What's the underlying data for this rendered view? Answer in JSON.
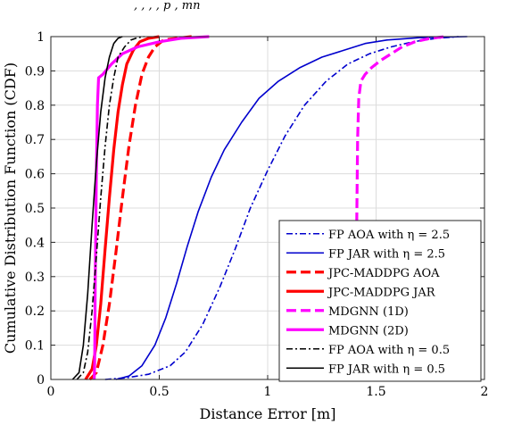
{
  "top_strip_text": ",        ,        ,        ,   p        ,       mn",
  "chart_data": {
    "type": "line",
    "title": "",
    "xlabel": "Distance Error [m]",
    "ylabel": "Cumulative Distribution Function (CDF)",
    "xlim": [
      0,
      2
    ],
    "ylim": [
      0,
      1
    ],
    "xticks": [
      "0",
      "0.5",
      "1",
      "1.5",
      "2"
    ],
    "yticks": [
      "0",
      "0.1",
      "0.2",
      "0.3",
      "0.4",
      "0.5",
      "0.6",
      "0.7",
      "0.8",
      "0.9",
      "1"
    ],
    "grid": true,
    "legend_position": "bottom-right",
    "series": [
      {
        "name": "FP AOA with η = 2.5",
        "color": "#0000cd",
        "dash": "dashdot",
        "width": 1.6,
        "points": [
          [
            0.25,
            0
          ],
          [
            0.35,
            0.005
          ],
          [
            0.45,
            0.015
          ],
          [
            0.55,
            0.04
          ],
          [
            0.62,
            0.08
          ],
          [
            0.7,
            0.16
          ],
          [
            0.78,
            0.27
          ],
          [
            0.85,
            0.38
          ],
          [
            0.92,
            0.5
          ],
          [
            1.0,
            0.61
          ],
          [
            1.08,
            0.71
          ],
          [
            1.17,
            0.8
          ],
          [
            1.27,
            0.87
          ],
          [
            1.37,
            0.92
          ],
          [
            1.47,
            0.95
          ],
          [
            1.57,
            0.97
          ],
          [
            1.67,
            0.985
          ],
          [
            1.78,
            0.995
          ],
          [
            1.88,
            1
          ]
        ]
      },
      {
        "name": "FP JAR with η = 2.5",
        "color": "#0000cd",
        "dash": "solid",
        "width": 1.6,
        "points": [
          [
            0.3,
            0
          ],
          [
            0.36,
            0.01
          ],
          [
            0.42,
            0.04
          ],
          [
            0.48,
            0.1
          ],
          [
            0.53,
            0.18
          ],
          [
            0.58,
            0.28
          ],
          [
            0.63,
            0.39
          ],
          [
            0.68,
            0.49
          ],
          [
            0.74,
            0.59
          ],
          [
            0.8,
            0.67
          ],
          [
            0.88,
            0.75
          ],
          [
            0.96,
            0.82
          ],
          [
            1.05,
            0.87
          ],
          [
            1.15,
            0.91
          ],
          [
            1.25,
            0.94
          ],
          [
            1.35,
            0.96
          ],
          [
            1.45,
            0.98
          ],
          [
            1.55,
            0.99
          ],
          [
            1.7,
            0.997
          ],
          [
            1.92,
            1
          ]
        ]
      },
      {
        "name": "JPC-MADDPG AOA",
        "color": "#ff0000",
        "dash": "longdash",
        "width": 3.2,
        "points": [
          [
            0.18,
            0
          ],
          [
            0.21,
            0.02
          ],
          [
            0.24,
            0.1
          ],
          [
            0.27,
            0.22
          ],
          [
            0.3,
            0.37
          ],
          [
            0.33,
            0.53
          ],
          [
            0.36,
            0.68
          ],
          [
            0.39,
            0.8
          ],
          [
            0.42,
            0.89
          ],
          [
            0.45,
            0.94
          ],
          [
            0.48,
            0.97
          ],
          [
            0.52,
            0.99
          ],
          [
            0.58,
            0.995
          ],
          [
            0.65,
            1
          ]
        ]
      },
      {
        "name": "JPC-MADDPG JAR",
        "color": "#ff0000",
        "dash": "solid",
        "width": 3.2,
        "points": [
          [
            0.16,
            0
          ],
          [
            0.19,
            0.03
          ],
          [
            0.21,
            0.1
          ],
          [
            0.23,
            0.22
          ],
          [
            0.25,
            0.38
          ],
          [
            0.27,
            0.53
          ],
          [
            0.29,
            0.67
          ],
          [
            0.31,
            0.78
          ],
          [
            0.33,
            0.86
          ],
          [
            0.35,
            0.92
          ],
          [
            0.38,
            0.96
          ],
          [
            0.41,
            0.985
          ],
          [
            0.45,
            0.995
          ],
          [
            0.5,
            1
          ]
        ]
      },
      {
        "name": "MDGNN (1D)",
        "color": "#ff00ff",
        "dash": "longdash",
        "width": 3.2,
        "points": [
          [
            1.4,
            0
          ],
          [
            1.405,
            0.1
          ],
          [
            1.41,
            0.4
          ],
          [
            1.415,
            0.7
          ],
          [
            1.42,
            0.82
          ],
          [
            1.43,
            0.87
          ],
          [
            1.45,
            0.89
          ],
          [
            1.48,
            0.91
          ],
          [
            1.52,
            0.93
          ],
          [
            1.57,
            0.95
          ],
          [
            1.62,
            0.97
          ],
          [
            1.68,
            0.985
          ],
          [
            1.75,
            0.995
          ],
          [
            1.82,
            1
          ]
        ]
      },
      {
        "name": "MDGNN (2D)",
        "color": "#ff00ff",
        "dash": "solid",
        "width": 3.2,
        "points": [
          [
            0.2,
            0
          ],
          [
            0.202,
            0.05
          ],
          [
            0.205,
            0.3
          ],
          [
            0.21,
            0.6
          ],
          [
            0.215,
            0.8
          ],
          [
            0.22,
            0.88
          ],
          [
            0.24,
            0.89
          ],
          [
            0.28,
            0.92
          ],
          [
            0.33,
            0.95
          ],
          [
            0.4,
            0.97
          ],
          [
            0.5,
            0.985
          ],
          [
            0.6,
            0.995
          ],
          [
            0.73,
            1
          ]
        ]
      },
      {
        "name": "FP AOA with η = 0.5",
        "color": "#000000",
        "dash": "dashdot",
        "width": 1.6,
        "points": [
          [
            0.12,
            0
          ],
          [
            0.15,
            0.02
          ],
          [
            0.17,
            0.08
          ],
          [
            0.19,
            0.2
          ],
          [
            0.21,
            0.36
          ],
          [
            0.23,
            0.53
          ],
          [
            0.25,
            0.68
          ],
          [
            0.27,
            0.8
          ],
          [
            0.29,
            0.88
          ],
          [
            0.31,
            0.94
          ],
          [
            0.34,
            0.97
          ],
          [
            0.37,
            0.99
          ],
          [
            0.4,
            0.997
          ],
          [
            0.43,
            1
          ]
        ]
      },
      {
        "name": "FP JAR with η = 0.5",
        "color": "#000000",
        "dash": "solid",
        "width": 1.6,
        "points": [
          [
            0.1,
            0
          ],
          [
            0.13,
            0.02
          ],
          [
            0.15,
            0.1
          ],
          [
            0.17,
            0.25
          ],
          [
            0.19,
            0.45
          ],
          [
            0.21,
            0.63
          ],
          [
            0.23,
            0.78
          ],
          [
            0.25,
            0.88
          ],
          [
            0.27,
            0.94
          ],
          [
            0.29,
            0.98
          ],
          [
            0.31,
            0.995
          ],
          [
            0.33,
            1
          ]
        ]
      }
    ]
  }
}
